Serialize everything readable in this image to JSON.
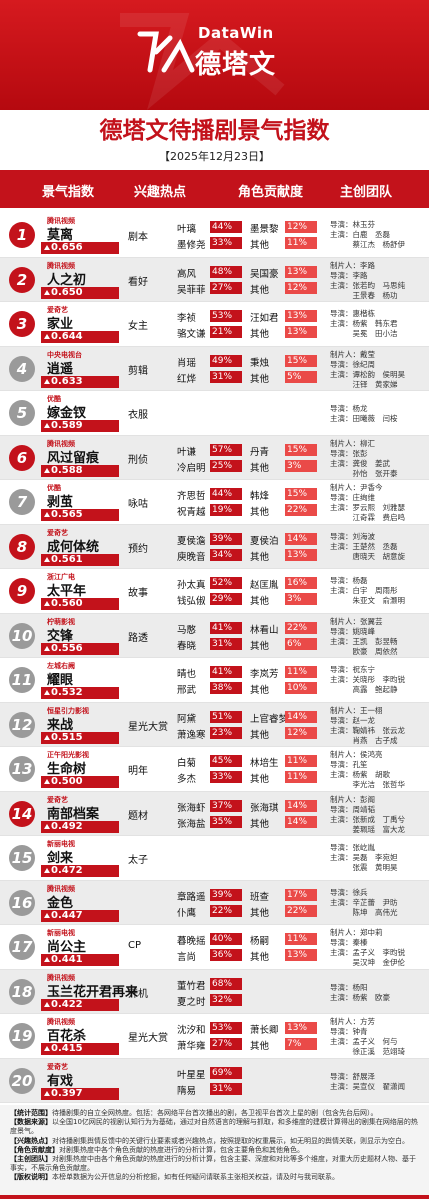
{
  "brand": {
    "en": "DataWin",
    "cn": "德塔文"
  },
  "title": "德塔文待播剧景气指数",
  "date": "【2025年12月23日】",
  "columns": [
    "景气指数",
    "兴趣热点",
    "角色贡献度",
    "主创团队"
  ],
  "colors": {
    "accent": "#c3121b",
    "light": "#ea4a48",
    "gray": "#9a9a9a"
  },
  "rows": [
    {
      "rank": "1",
      "platform": "腾讯视频",
      "name": "莫离",
      "score": "0.656",
      "hot": "剧本",
      "a1": "叶璃",
      "p1": "44%",
      "a2": "墨景黎",
      "p2": "12%",
      "a3": "墨修尧",
      "p3": "33%",
      "a4": "其他",
      "p4": "11%",
      "team": [
        "导演：林玉芬",
        "主演：白鹿　丞磊",
        "　　　蔡江杰　杨舒伊"
      ]
    },
    {
      "rank": "2",
      "platform": "腾讯视频",
      "name": "人之初",
      "score": "0.650",
      "hot": "看好",
      "a1": "高风",
      "p1": "48%",
      "a2": "吴国豪",
      "p2": "13%",
      "a3": "吴菲菲",
      "p3": "27%",
      "a4": "其他",
      "p4": "12%",
      "team": [
        "制片人：李路",
        "导演：李路",
        "主演：张若昀　马思纯",
        "　　　王景春　杨功"
      ]
    },
    {
      "rank": "3",
      "platform": "爱奇艺",
      "name": "家业",
      "score": "0.644",
      "hot": "女主",
      "a1": "李祯",
      "p1": "53%",
      "a2": "汪如君",
      "p2": "13%",
      "a3": "骆文谦",
      "p3": "21%",
      "a4": "其他",
      "p4": "13%",
      "team": [
        "导演：惠楷栋",
        "主演：杨紫　韩东君",
        "　　　吴冕　田小洁"
      ]
    },
    {
      "rank": "4",
      "platform": "中央电视台",
      "name": "逍遥",
      "score": "0.633",
      "hot": "剪辑",
      "a1": "肖瑶",
      "p1": "49%",
      "a2": "秉烛",
      "p2": "15%",
      "a3": "红烨",
      "p3": "31%",
      "a4": "其他",
      "p4": "5%",
      "team": [
        "制片人：戴莹",
        "导演：徐纪周",
        "主演：谭松韵　侯明昊",
        "　　　汪铎　黄家娣"
      ]
    },
    {
      "rank": "5",
      "platform": "优酷",
      "name": "嫁金钗",
      "score": "0.589",
      "hot": "衣服",
      "a1": "",
      "p1": "",
      "a2": "",
      "p2": "",
      "a3": "",
      "p3": "",
      "a4": "",
      "p4": "",
      "team": [
        "导演：杨龙",
        "主演：田曦薇　闫桉"
      ]
    },
    {
      "rank": "6",
      "platform": "腾讯视频",
      "name": "风过留痕",
      "score": "0.588",
      "hot": "刑侦",
      "a1": "叶谦",
      "p1": "57%",
      "a2": "丹青",
      "p2": "15%",
      "a3": "冷启明",
      "p3": "25%",
      "a4": "其他",
      "p4": "3%",
      "team": [
        "制片人：柳汇",
        "导演：张彭",
        "主演：龚俊　姜武",
        "　　　孙怡　张开泰"
      ]
    },
    {
      "rank": "7",
      "platform": "优酷",
      "name": "剥茧",
      "score": "0.565",
      "hot": "咏咕",
      "a1": "齐思哲",
      "p1": "44%",
      "a2": "韩烽",
      "p2": "15%",
      "a3": "祝青越",
      "p3": "19%",
      "a4": "其他",
      "p4": "22%",
      "team": [
        "制片人：尹香今",
        "导演：庄绚维",
        "主演：罗云熙　刘雅瑟",
        "　　　江奇霖　费启鸣"
      ]
    },
    {
      "rank": "8",
      "platform": "爱奇艺",
      "name": "成何体统",
      "score": "0.561",
      "hot": "预约",
      "a1": "夏侯澹",
      "p1": "39%",
      "a2": "夏侯泊",
      "p2": "14%",
      "a3": "庾晚音",
      "p3": "34%",
      "a4": "其他",
      "p4": "13%",
      "team": [
        "导演：刘海波",
        "主演：王楚然　丞磊",
        "　　　唐晓天　胡意旋"
      ]
    },
    {
      "rank": "9",
      "platform": "浙江广电",
      "name": "太平年",
      "score": "0.560",
      "hot": "故事",
      "a1": "孙太真",
      "p1": "52%",
      "a2": "赵匡胤",
      "p2": "16%",
      "a3": "钱弘俶",
      "p3": "29%",
      "a4": "其他",
      "p4": "3%",
      "team": [
        "导演：杨磊",
        "主演：白宇　周雨彤",
        "　　　朱亚文　俞灏明"
      ]
    },
    {
      "rank": "10",
      "platform": "柠萌影视",
      "name": "交锋",
      "score": "0.556",
      "hot": "路透",
      "a1": "马憨",
      "p1": "41%",
      "a2": "林看山",
      "p2": "22%",
      "a3": "春晓",
      "p3": "31%",
      "a4": "其他",
      "p4": "6%",
      "team": [
        "制片人：张翼芸",
        "导演：姚晓峰",
        "主演：王凯　彭昱畅",
        "　　　欧豪　周依然"
      ]
    },
    {
      "rank": "11",
      "platform": "左城右阙",
      "name": "耀眼",
      "score": "0.532",
      "hot": "",
      "a1": "晴也",
      "p1": "41%",
      "a2": "李岚芳",
      "p2": "11%",
      "a3": "邢武",
      "p3": "38%",
      "a4": "其他",
      "p4": "10%",
      "team": [
        "导演：祝东宁",
        "主演：关晓彤　李昀锐",
        "　　　高露　鲍起静"
      ]
    },
    {
      "rank": "12",
      "platform": "恒星引力影视",
      "name": "来战",
      "score": "0.515",
      "hot": "星光大赏",
      "a1": "阿黛",
      "p1": "51%",
      "a2": "上官睿梦",
      "p2": "14%",
      "a3": "萧逸寒",
      "p3": "23%",
      "a4": "其他",
      "p4": "12%",
      "team": [
        "制片人：王一栩",
        "导演：赵一龙",
        "主演：鞠婧祎　张云龙",
        "　　　肖燕　古子成"
      ]
    },
    {
      "rank": "13",
      "platform": "正午阳光影视",
      "name": "生命树",
      "score": "0.500",
      "hot": "明年",
      "a1": "白菊",
      "p1": "45%",
      "a2": "林培生",
      "p2": "11%",
      "a3": "多杰",
      "p3": "33%",
      "a4": "其他",
      "p4": "11%",
      "team": [
        "制片人：侯鸿亮",
        "导演：孔笙",
        "主演：杨紫　胡歌",
        "　　　李光洁　张哲华"
      ]
    },
    {
      "rank": "14",
      "platform": "爱奇艺",
      "name": "南部档案",
      "score": "0.492",
      "hot": "题材",
      "a1": "张海虾",
      "p1": "37%",
      "a2": "张海琪",
      "p2": "14%",
      "a3": "张海盐",
      "p3": "35%",
      "a4": "其他",
      "p4": "14%",
      "team": [
        "制片人：彭阁",
        "导演：周靖韬",
        "主演：张新成　丁禹兮",
        "　　　姜珮瑶　富大龙"
      ]
    },
    {
      "rank": "15",
      "platform": "新丽电视",
      "name": "剑来",
      "score": "0.472",
      "hot": "太子",
      "a1": "",
      "p1": "",
      "a2": "",
      "p2": "",
      "a3": "",
      "p3": "",
      "a4": "",
      "p4": "",
      "team": [
        "导演：张屹胤",
        "主演：吴磊　李宛妲",
        "　　　张震　黄明昊"
      ]
    },
    {
      "rank": "16",
      "platform": "腾讯视频",
      "name": "金色",
      "score": "0.447",
      "hot": "",
      "a1": "章路遥",
      "p1": "39%",
      "a2": "班查",
      "p2": "17%",
      "a3": "仆鹰",
      "p3": "22%",
      "a4": "其他",
      "p4": "22%",
      "team": [
        "导演：徐兵",
        "主演：辛芷蕾　尹昉",
        "　　　陈坤　高伟光"
      ]
    },
    {
      "rank": "17",
      "platform": "新丽电视",
      "name": "尚公主",
      "score": "0.441",
      "hot": "CP",
      "a1": "暮晚摇",
      "p1": "40%",
      "a2": "杨嗣",
      "p2": "11%",
      "a3": "言尚",
      "p3": "36%",
      "a4": "其他",
      "p4": "13%",
      "team": [
        "制片人：郑中莉",
        "导演：秦榛",
        "主演：孟子义　李昀锐",
        "　　　吴汉坤　金伊伦"
      ]
    },
    {
      "rank": "18",
      "platform": "腾讯视频",
      "name": "玉兰花开君再来",
      "score": "0.422",
      "hot": "开机",
      "a1": "董竹君",
      "p1": "68%",
      "a2": "",
      "p2": "",
      "a3": "夏之时",
      "p3": "32%",
      "a4": "",
      "p4": "",
      "team": [
        "导演：杨阳",
        "主演：杨紫　欧豪"
      ]
    },
    {
      "rank": "19",
      "platform": "腾讯视频",
      "name": "百花杀",
      "score": "0.415",
      "hot": "星光大赏",
      "a1": "沈汐和",
      "p1": "53%",
      "a2": "萧长卿",
      "p2": "13%",
      "a3": "萧华雍",
      "p3": "27%",
      "a4": "其他",
      "p4": "7%",
      "team": [
        "制片人：方芳",
        "导演：钟青",
        "主演：孟子义　何与",
        "　　　徐正溪　范翊琦"
      ]
    },
    {
      "rank": "20",
      "platform": "爱奇艺",
      "name": "有戏",
      "score": "0.397",
      "hot": "",
      "a1": "叶星星",
      "p1": "69%",
      "a2": "",
      "p2": "",
      "a3": "隋易",
      "p3": "31%",
      "a4": "",
      "p4": "",
      "team": [
        "导演：舒展泽",
        "主演：吴宣仪　翟潇闻"
      ]
    }
  ],
  "notes": [
    {
      "k": "【统计范围】",
      "v": "待播剧集的自立全网热度。包括：各网络平台首次播出的剧，各卫视平台首次上星的剧（包含先台后网）。"
    },
    {
      "k": "【数据来源】",
      "v": "以全国10亿网民的视剧认知行为为基础，通过对自然语言的理解与抓取，和多维度的建模计算得出的剧集在网络层的热度景气。"
    },
    {
      "k": "【兴趣热点】",
      "v": "对待播剧集舆情反馈中的关键行业要素或者兴趣热点，按照提取的权重展示，如无明显的舆情关联，则显示为空白。"
    },
    {
      "k": "【角色贡献度】",
      "v": "对剧集热度中各个角色贡献的热度进行的分析计算，包含主要角色和其他角色。"
    },
    {
      "k": "【主创团队】",
      "v": "对剧集热度中由各个角色贡献的热度进行的分析计算，包含主要、深度和对比等多个维度，对重大历史题材人物、基于事实，不展示角色贡献度。"
    },
    {
      "k": "【版权说明】",
      "v": "本榜单数据为公开信息的分析挖掘，如有任何疑问请联系主张相关权益，请及时与我司联系。"
    }
  ]
}
